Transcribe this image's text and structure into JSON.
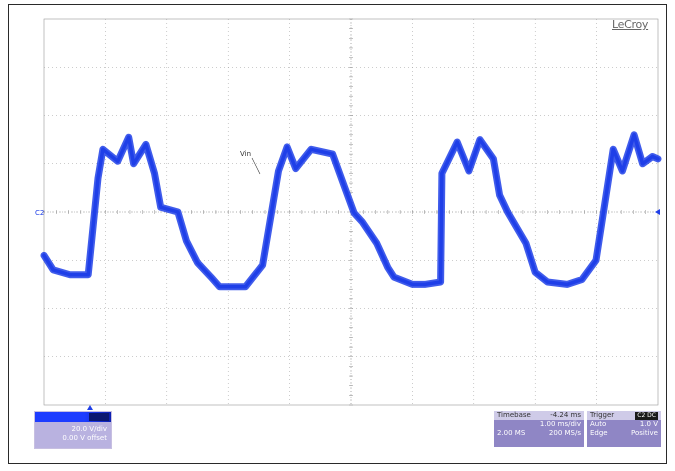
{
  "window": {
    "brand": "LeCroy"
  },
  "colors": {
    "trace": "#1f3fe8",
    "grid": "#9a9a9a",
    "panel": "#8f86c5"
  },
  "chart_data": {
    "type": "line",
    "title": "",
    "xlabel": "",
    "ylabel": "",
    "grid": true,
    "xlim": [
      0,
      10
    ],
    "ylim": [
      -4,
      4
    ],
    "trace_label": "Vin",
    "channel_marker": "C2",
    "series": [
      {
        "name": "Vin",
        "x": [
          0,
          0.15,
          0.42,
          0.72,
          0.88,
          0.96,
          1.2,
          1.38,
          1.46,
          1.66,
          1.8,
          1.9,
          2.18,
          2.32,
          2.5,
          2.72,
          2.86,
          3.0,
          3.28,
          3.56,
          3.82,
          3.96,
          4.1,
          4.35,
          4.7,
          4.9,
          5.05,
          5.18,
          5.42,
          5.6,
          5.7,
          6.0,
          6.2,
          6.46,
          6.48,
          6.73,
          6.92,
          7.1,
          7.32,
          7.42,
          7.55,
          7.85,
          8.0,
          8.2,
          8.52,
          8.76,
          8.99,
          9.27,
          9.42,
          9.61,
          9.75,
          9.91,
          10.0
        ],
        "values": [
          -0.9,
          -1.2,
          -1.3,
          -1.3,
          0.7,
          1.3,
          1.05,
          1.55,
          1.0,
          1.4,
          0.8,
          0.1,
          0.0,
          -0.6,
          -1.05,
          -1.35,
          -1.55,
          -1.55,
          -1.55,
          -1.1,
          0.85,
          1.35,
          0.9,
          1.3,
          1.2,
          0.5,
          -0.02,
          -0.2,
          -0.65,
          -1.15,
          -1.35,
          -1.5,
          -1.5,
          -1.45,
          0.8,
          1.45,
          0.85,
          1.5,
          1.1,
          0.35,
          0.0,
          -0.65,
          -1.25,
          -1.45,
          -1.5,
          -1.4,
          -1.0,
          1.3,
          0.85,
          1.6,
          1.0,
          1.15,
          1.1
        ]
      }
    ]
  },
  "channel_panel": {
    "scale": "20.0 V/div",
    "offset": "0.00 V offset"
  },
  "timebase_panel": {
    "label": "Timebase",
    "delay": "-4.24 ms",
    "tdiv": "1.00 ms/div",
    "samples": "2.00 MS",
    "rate": "200 MS/s"
  },
  "trigger_panel": {
    "label": "Trigger",
    "badge": "C2 DC",
    "mode": "Auto",
    "level": "1.0 V",
    "type": "Edge",
    "slope": "Positive"
  }
}
